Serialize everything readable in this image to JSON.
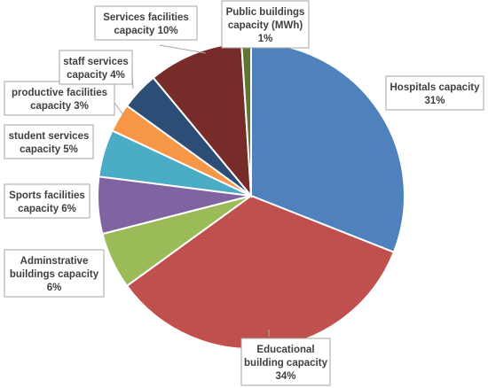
{
  "chart_data": {
    "type": "pie",
    "title": "",
    "slices": [
      {
        "label_lines": [
          "Hospitals capacity",
          "31%"
        ],
        "value": 31,
        "color": "#4F81BD"
      },
      {
        "label_lines": [
          "Educational",
          "building capacity",
          "34%"
        ],
        "value": 34,
        "color": "#C0504D"
      },
      {
        "label_lines": [
          "Adminstrative",
          "buildings capacity",
          "6%"
        ],
        "value": 6,
        "color": "#9BBB59"
      },
      {
        "label_lines": [
          "Sports facilities",
          "capacity  6%"
        ],
        "value": 6,
        "color": "#8064A2"
      },
      {
        "label_lines": [
          "student services",
          "capacity 5%"
        ],
        "value": 5,
        "color": "#4BACC6"
      },
      {
        "label_lines": [
          "productive  facilities",
          "capacity  3%"
        ],
        "value": 3,
        "color": "#F79646"
      },
      {
        "label_lines": [
          "staff services",
          "capacity  4%"
        ],
        "value": 4,
        "color": "#2C4D75"
      },
      {
        "label_lines": [
          "Services facilities",
          "capacity 10%"
        ],
        "value": 10,
        "color": "#772C2A"
      },
      {
        "label_lines": [
          "Public buildings",
          "capacity (MWh)",
          "1%"
        ],
        "value": 1,
        "color": "#5F7530"
      }
    ],
    "label_box_border": "#A6A6A6",
    "leader_line_color": "#A6A6A6"
  }
}
